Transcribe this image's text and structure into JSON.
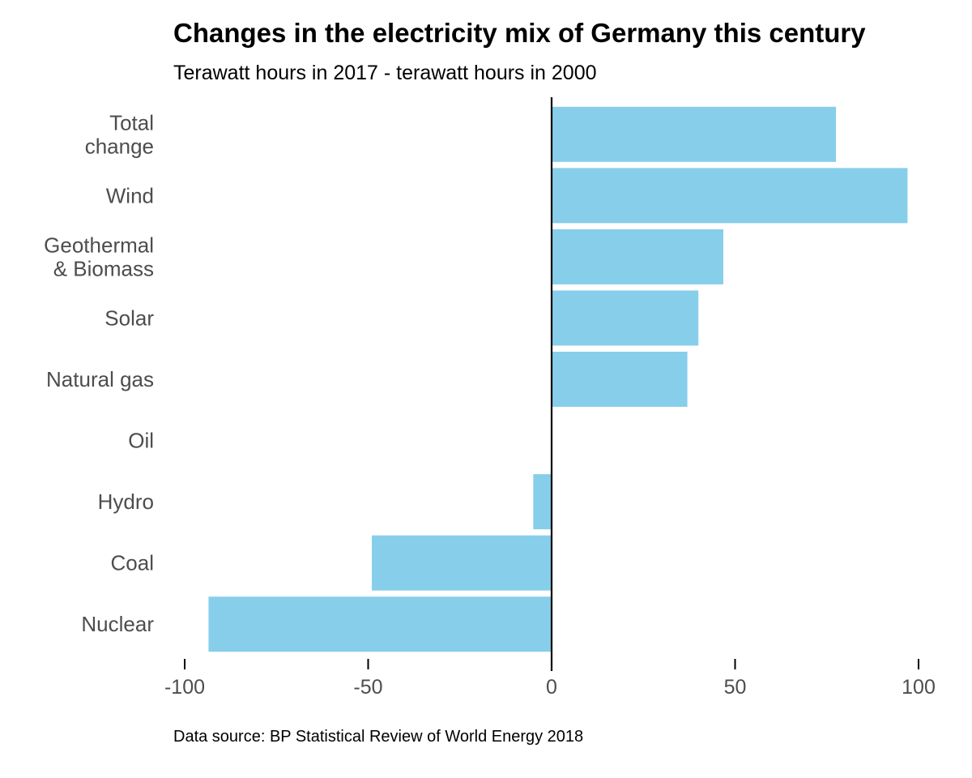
{
  "chart_data": {
    "type": "bar",
    "orientation": "horizontal",
    "title": "Changes in the electricity mix of Germany this century",
    "subtitle": "Terawatt hours in 2017 - terawatt hours in 2000",
    "caption": "Data source: BP Statistical Review of World Energy 2018",
    "categories": [
      [
        "Total",
        "change"
      ],
      [
        "Wind"
      ],
      [
        "Geothermal",
        "& Biomass"
      ],
      [
        "Solar"
      ],
      [
        "Natural gas"
      ],
      [
        "Oil"
      ],
      [
        "Hydro"
      ],
      [
        "Coal"
      ],
      [
        "Nuclear"
      ]
    ],
    "values": [
      77.5,
      97,
      46.8,
      40,
      37,
      0,
      -5,
      -49,
      -93.5
    ],
    "xlim": [
      -100,
      100
    ],
    "xticks": [
      -100,
      -50,
      0,
      50,
      100
    ],
    "xtick_labels": [
      "-100",
      "-50",
      "0",
      "50",
      "100"
    ],
    "bar_color": "#87CEEB",
    "zero_line_color": "#000000",
    "grid": false
  }
}
